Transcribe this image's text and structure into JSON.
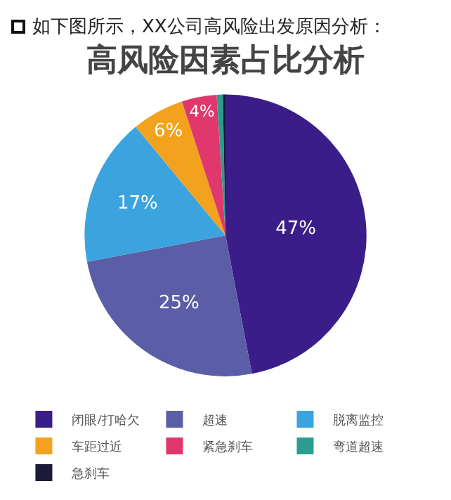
{
  "chart_data": {
    "type": "pie",
    "subtitle": "如下图所示，XX公司高风险出发原因分析：",
    "title": "高风险因素占比分析",
    "categories": [
      "闭眼/打哈欠",
      "超速",
      "脱离监控",
      "车距过近",
      "紧急刹车",
      "弯道超速",
      "急刹车"
    ],
    "values": [
      47,
      25,
      17,
      6,
      4,
      0.7,
      0.3
    ],
    "value_labels": [
      "47%",
      "25%",
      "17%",
      "6%",
      "4%",
      null,
      null
    ],
    "colors": [
      "#3b1d8a",
      "#5b5ea6",
      "#3ba3dd",
      "#f3a21f",
      "#e0386c",
      "#2a9d8f",
      "#1c1a3a"
    ],
    "legend": "bottom"
  }
}
